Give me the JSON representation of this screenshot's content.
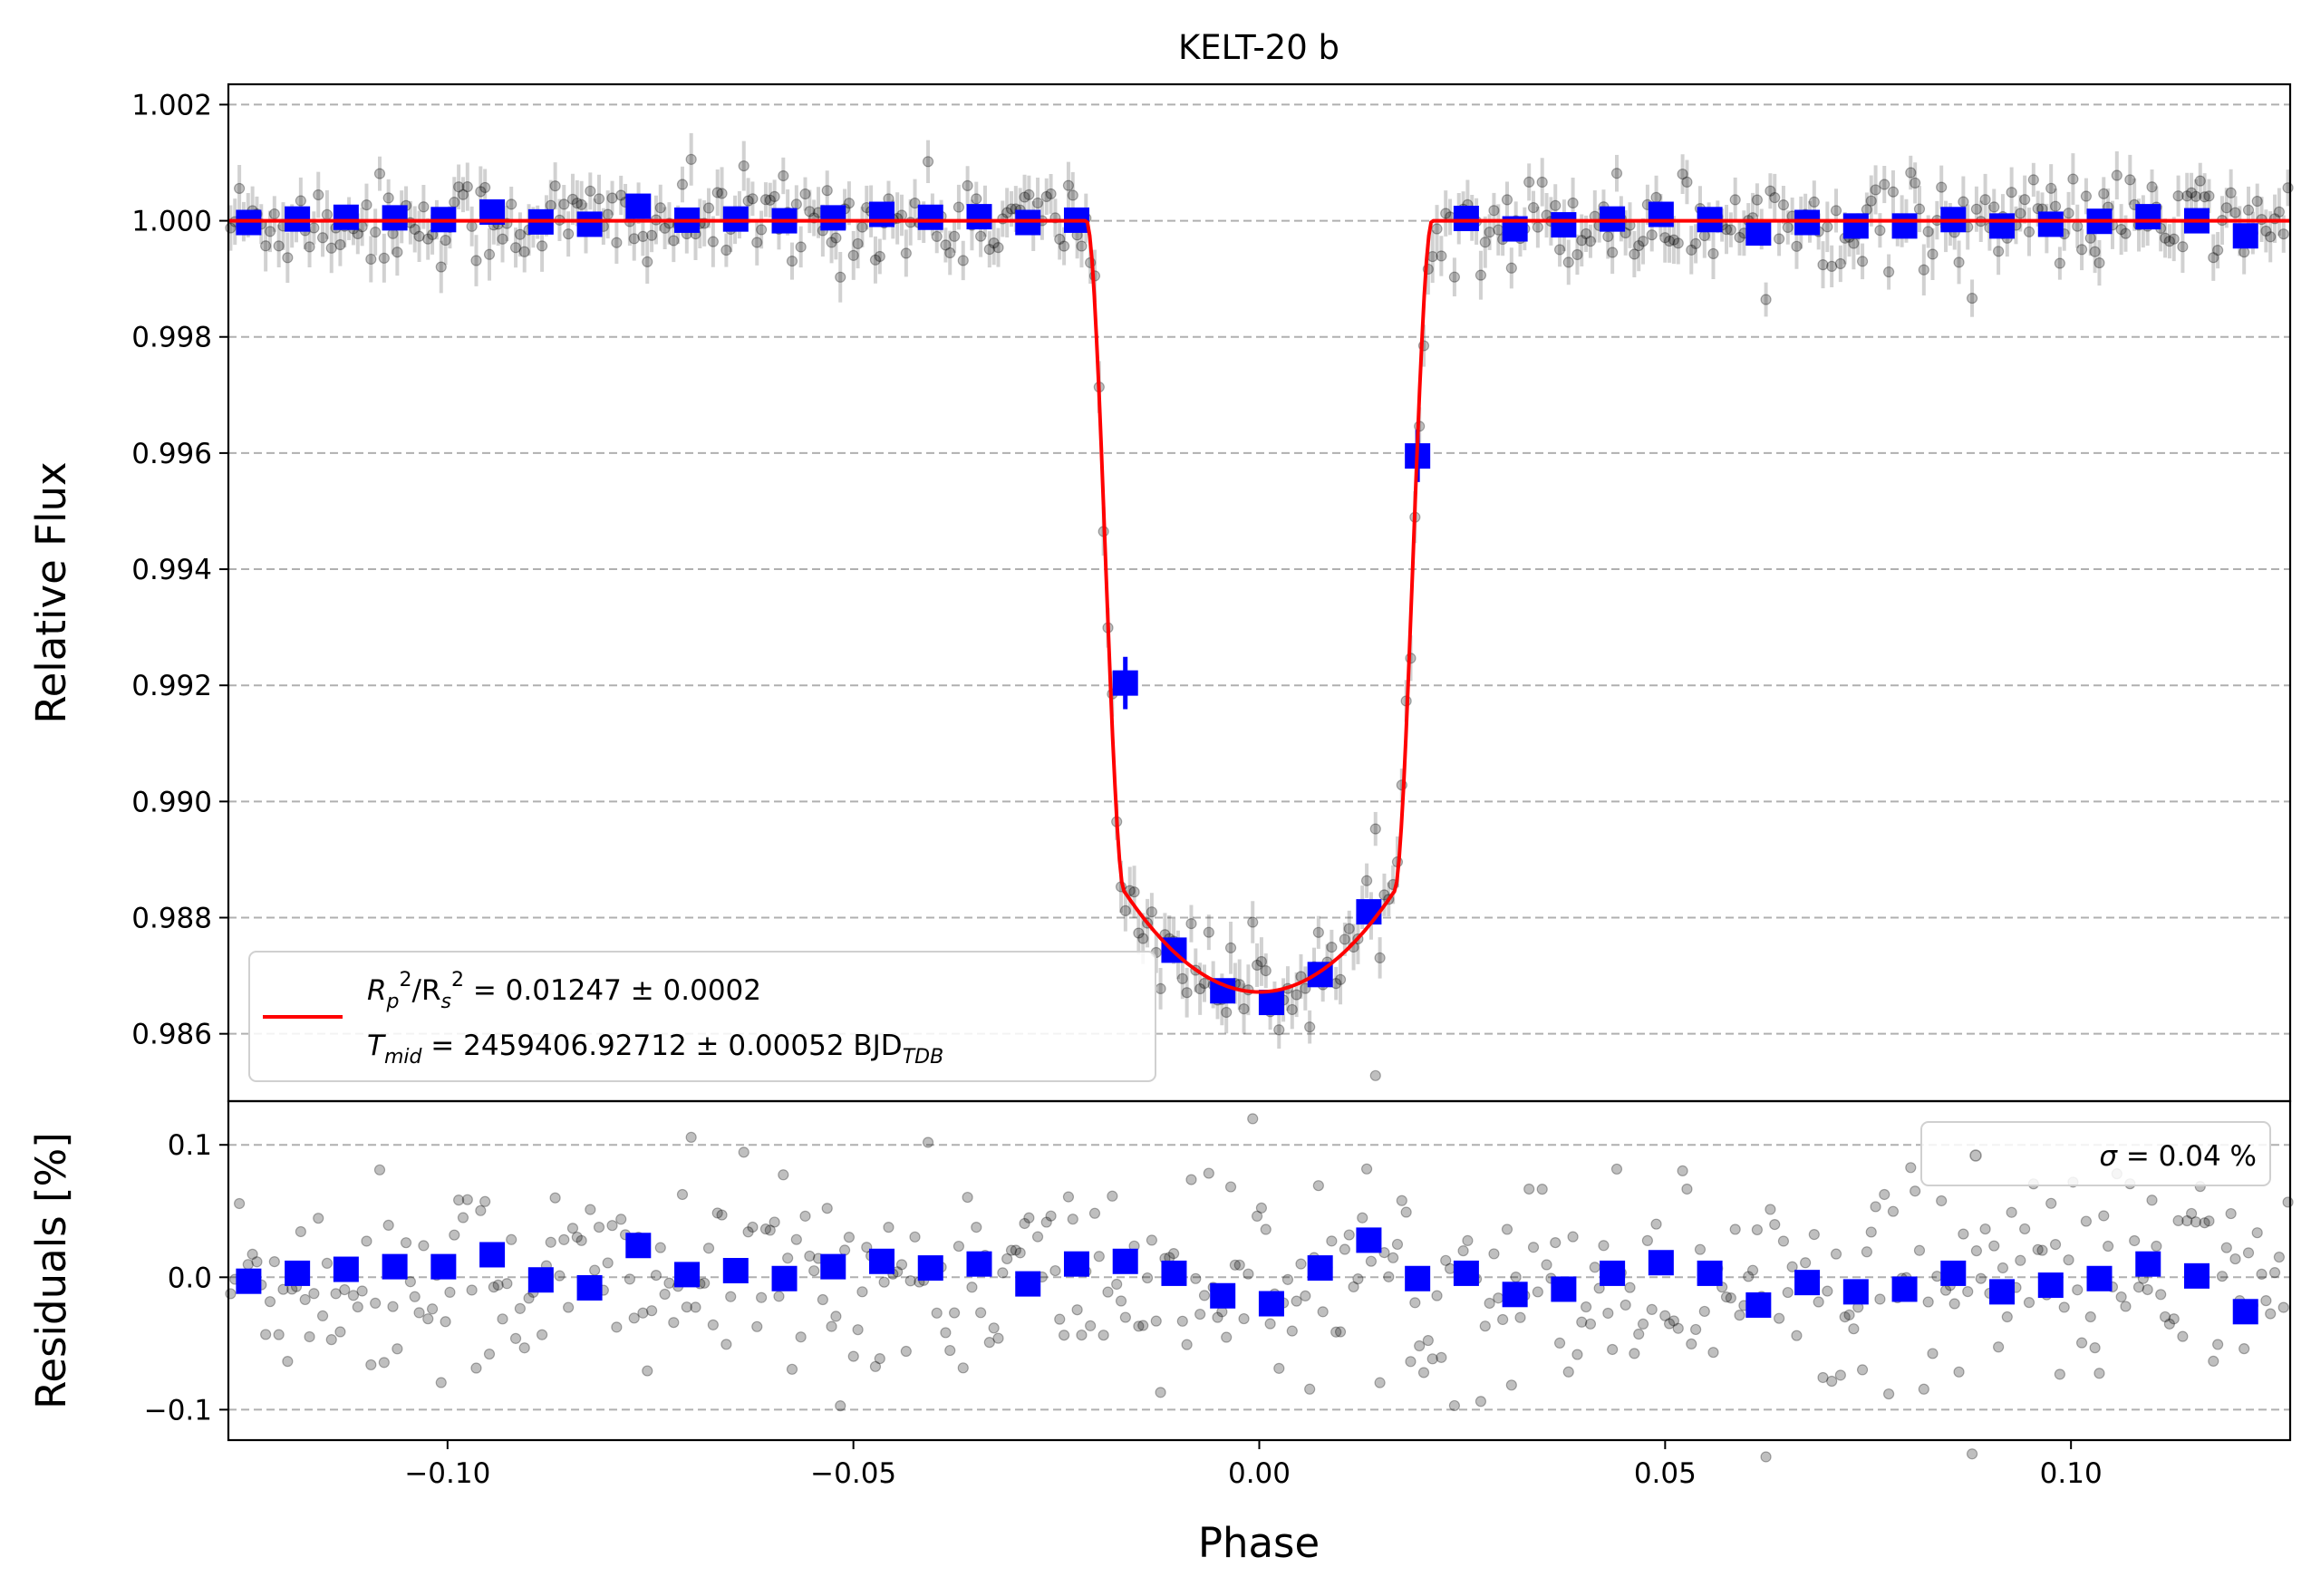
{
  "chart_data": [
    {
      "type": "scatter",
      "panel": "main",
      "title": "KELT-20 b",
      "ylabel": "Relative Flux",
      "xlabel": "",
      "xlim": [
        -0.127,
        0.127
      ],
      "ylim": [
        0.98484,
        1.00235
      ],
      "yticks": [
        "0.986",
        "0.988",
        "0.990",
        "0.992",
        "0.994",
        "0.996",
        "0.998",
        "1.000",
        "1.002"
      ],
      "ytick_values": [
        0.986,
        0.988,
        0.99,
        0.992,
        0.994,
        0.996,
        0.998,
        1.0,
        1.002
      ],
      "grid": "horizontal dashed",
      "legend": {
        "placement": "lower-left",
        "line1_parts": [
          "R",
          "p",
          "2",
          "/R",
          "s",
          "2",
          " = 0.01247 ± 0.0002"
        ],
        "line2_parts": [
          "T",
          "mid",
          " = 2459406.92712 ± 0.00052 BJD",
          "TDB"
        ]
      },
      "colors": {
        "raw": "#000000",
        "binned": "#0000ff",
        "model": "#ff0000"
      },
      "model": {
        "name": "transit model",
        "depth_at_center": 0.98672,
        "first_contact": -0.0213,
        "second_contact": -0.0166,
        "third_contact": 0.0166,
        "fourth_contact": 0.0213
      },
      "raw_series": {
        "name": "raw data",
        "x_range": [
          -0.127,
          0.127
        ],
        "point_count": 470,
        "typical_scatter": 0.0004,
        "error_bar": 0.00035
      },
      "binned_series": {
        "name": "binned data",
        "x": [
          -0.1245,
          -0.1185,
          -0.1125,
          -0.1065,
          -0.1005,
          -0.0945,
          -0.0885,
          -0.0825,
          -0.0765,
          -0.0705,
          -0.0645,
          -0.0585,
          -0.0525,
          -0.0465,
          -0.0405,
          -0.0345,
          -0.0285,
          -0.0225,
          -0.0165,
          -0.0105,
          -0.0045,
          0.0015,
          0.0075,
          0.0135,
          0.0195,
          0.0255,
          0.0315,
          0.0375,
          0.0435,
          0.0495,
          0.0555,
          0.0615,
          0.0675,
          0.0735,
          0.0795,
          0.0855,
          0.0915,
          0.0975,
          0.1035,
          0.1095,
          0.1155,
          0.1215
        ],
        "y": [
          0.99997,
          1.00003,
          1.00006,
          1.00005,
          1.00002,
          1.00015,
          0.99998,
          0.99994,
          1.00025,
          1.00001,
          1.00003,
          1.0,
          1.00005,
          1.00011,
          1.00006,
          1.00007,
          0.99997,
          1.00001,
          0.99204,
          0.98744,
          0.98674,
          0.98654,
          0.98702,
          0.9881,
          0.99595,
          1.00004,
          0.99986,
          0.99993,
          1.00003,
          1.00011,
          1.00002,
          0.99979,
          0.99997,
          0.99991,
          0.99991,
          1.00002,
          0.99991,
          0.99994,
          0.99999,
          1.00007,
          1.0,
          0.99974
        ],
        "yerr": [
          5e-05,
          5e-05,
          5e-05,
          5e-05,
          5e-05,
          5e-05,
          5e-05,
          5e-05,
          5e-05,
          5e-05,
          5e-05,
          5e-05,
          5e-05,
          5e-05,
          5e-05,
          5e-05,
          5e-05,
          5e-05,
          0.00045,
          0.00015,
          6e-05,
          6e-05,
          6e-05,
          0.00012,
          0.00045,
          5e-05,
          5e-05,
          5e-05,
          5e-05,
          5e-05,
          5e-05,
          5e-05,
          5e-05,
          5e-05,
          5e-05,
          5e-05,
          5e-05,
          5e-05,
          5e-05,
          5e-05,
          5e-05,
          5e-05
        ]
      }
    },
    {
      "type": "scatter",
      "panel": "residuals",
      "ylabel": "Residuals [%]",
      "xlabel": "Phase",
      "xlim": [
        -0.127,
        0.127
      ],
      "ylim": [
        -0.123,
        0.133
      ],
      "xticks": [
        "−0.10",
        "−0.05",
        "0.00",
        "0.05",
        "0.10"
      ],
      "xtick_values": [
        -0.1,
        -0.05,
        0.0,
        0.05,
        0.1
      ],
      "yticks": [
        "−0.1",
        "0.0",
        "0.1"
      ],
      "ytick_values": [
        -0.1,
        0.0,
        0.1
      ],
      "grid": "horizontal dashed",
      "legend": {
        "placement": "upper-right",
        "sigma_symbol": "σ",
        "sigma_text": " = 0.04 %"
      },
      "raw_series": {
        "name": "raw residuals",
        "point_count": 470,
        "typical_scatter": 0.038
      },
      "binned_series": {
        "name": "binned residuals",
        "x": [
          -0.1245,
          -0.1185,
          -0.1125,
          -0.1065,
          -0.1005,
          -0.0945,
          -0.0885,
          -0.0825,
          -0.0765,
          -0.0705,
          -0.0645,
          -0.0585,
          -0.0525,
          -0.0465,
          -0.0405,
          -0.0345,
          -0.0285,
          -0.0225,
          -0.0165,
          -0.0105,
          -0.0045,
          0.0015,
          0.0075,
          0.0135,
          0.0195,
          0.0255,
          0.0315,
          0.0375,
          0.0435,
          0.0495,
          0.0555,
          0.0615,
          0.0675,
          0.0735,
          0.0795,
          0.0855,
          0.0915,
          0.0975,
          0.1035,
          0.1095,
          0.1155,
          0.1215
        ],
        "y": [
          -0.003,
          0.003,
          0.006,
          0.008,
          0.008,
          0.017,
          -0.002,
          -0.008,
          0.024,
          0.002,
          0.005,
          -0.001,
          0.008,
          0.012,
          0.007,
          0.01,
          -0.005,
          0.01,
          0.012,
          0.003,
          -0.014,
          -0.02,
          0.007,
          0.028,
          -0.001,
          0.003,
          -0.013,
          -0.009,
          0.003,
          0.011,
          0.003,
          -0.021,
          -0.004,
          -0.011,
          -0.009,
          0.003,
          -0.011,
          -0.006,
          -0.001,
          0.01,
          0.001,
          -0.026
        ]
      }
    }
  ]
}
